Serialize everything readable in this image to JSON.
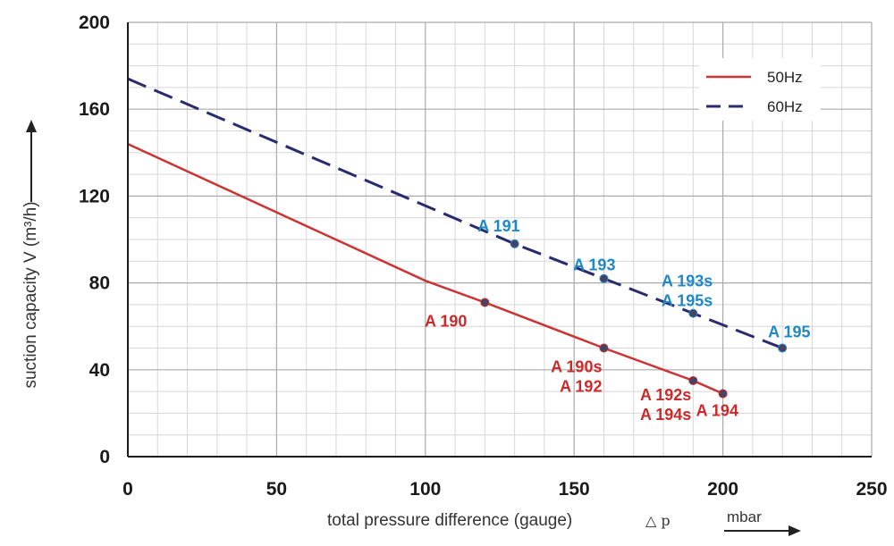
{
  "chart_data": {
    "type": "line",
    "title": "",
    "xlabel": "total pressure difference (gauge)",
    "xlabel_symbol": "△ p",
    "xunit": "mbar",
    "ylabel": "suction capacity V (m³/h)",
    "xlim": [
      0,
      250
    ],
    "ylim": [
      0,
      200
    ],
    "x_ticks": [
      0,
      50,
      100,
      150,
      200,
      250
    ],
    "y_ticks": [
      0,
      40,
      80,
      120,
      160,
      200
    ],
    "grid": true,
    "legend_position": "top-right",
    "series": [
      {
        "name": "50Hz",
        "color": "#cc3333",
        "style": "solid",
        "points": [
          [
            0,
            144
          ],
          [
            100,
            81
          ],
          [
            120,
            71
          ],
          [
            160,
            50
          ],
          [
            190,
            35
          ],
          [
            200,
            29
          ]
        ],
        "markers": [
          {
            "x": 120,
            "y": 71,
            "label": [
              "A 190"
            ]
          },
          {
            "x": 160,
            "y": 50,
            "label": [
              "A 190s",
              "A 192"
            ]
          },
          {
            "x": 190,
            "y": 35,
            "label": [
              "A 192s",
              "A 194s"
            ]
          },
          {
            "x": 200,
            "y": 29,
            "label": [
              "A 194"
            ]
          }
        ]
      },
      {
        "name": "60Hz",
        "color": "#2a2a6e",
        "style": "dashed",
        "points": [
          [
            0,
            174
          ],
          [
            130,
            98
          ],
          [
            160,
            82
          ],
          [
            190,
            66
          ],
          [
            220,
            50
          ]
        ],
        "markers": [
          {
            "x": 130,
            "y": 98,
            "label": [
              "A 191"
            ]
          },
          {
            "x": 160,
            "y": 82,
            "label": [
              "A 193"
            ]
          },
          {
            "x": 190,
            "y": 66,
            "label": [
              "A 193s",
              "A 195s"
            ]
          },
          {
            "x": 220,
            "y": 50,
            "label": [
              "A 195"
            ]
          }
        ]
      }
    ],
    "label_colors": {
      "50Hz": "#cc2a2a",
      "60Hz": "#1e88c8"
    }
  }
}
